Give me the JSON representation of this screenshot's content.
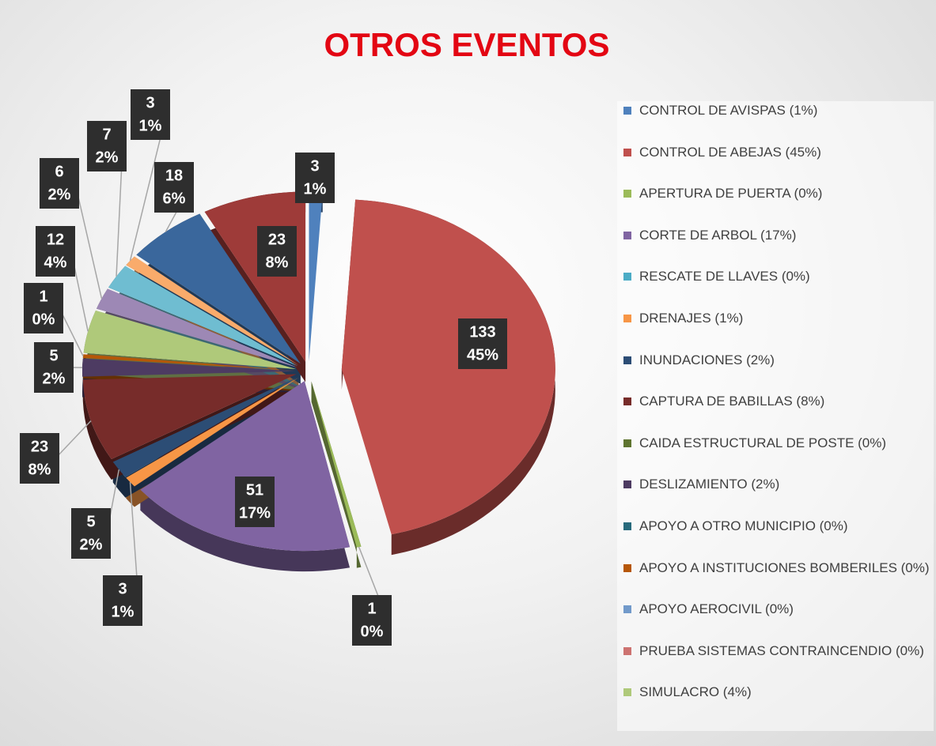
{
  "chart_data": {
    "type": "pie",
    "title": "OTROS EVENTOS",
    "categories": [
      "CONTROL DE AVISPAS (1%)",
      "CONTROL DE ABEJAS (45%)",
      "APERTURA DE PUERTA (0%)",
      "CORTE DE ARBOL (17%)",
      "RESCATE DE LLAVES (0%)",
      "DRENAJES (1%)",
      "INUNDACIONES (2%)",
      "CAPTURA DE BABILLAS (8%)",
      "CAIDA ESTRUCTURAL DE POSTE (0%)",
      "DESLIZAMIENTO (2%)",
      "APOYO A OTRO MUNICIPIO (0%)",
      "APOYO A INSTITUCIONES BOMBERILES (0%)",
      "APOYO AEROCIVIL (0%)",
      "PRUEBA SISTEMAS CONTRAINCENDIO (0%)",
      "SIMULACRO (4%)",
      null,
      null,
      null,
      null,
      null
    ],
    "values": [
      3,
      133,
      1,
      51,
      0,
      3,
      5,
      23,
      0,
      5,
      0,
      1,
      0,
      0,
      12,
      6,
      7,
      3,
      18,
      23
    ],
    "percent_labels": [
      "1%",
      "45%",
      "0%",
      "17%",
      null,
      "1%",
      "2%",
      "8%",
      null,
      "2%",
      null,
      "0%",
      null,
      null,
      "4%",
      "2%",
      "2%",
      "1%",
      "6%",
      "8%"
    ],
    "colors": [
      "#4f81bd",
      "#c0504d",
      "#9bbb59",
      "#8064a2",
      "#4bacc6",
      "#f79646",
      "#2c4d75",
      "#772c2a",
      "#5f7530",
      "#4d3b62",
      "#276a7c",
      "#b65708",
      "#729aca",
      "#cd7371",
      "#afc97a",
      "#9d88b5",
      "#6fbdd1",
      "#f9ab6b",
      "#3a679c",
      "#9e3b39"
    ]
  }
}
